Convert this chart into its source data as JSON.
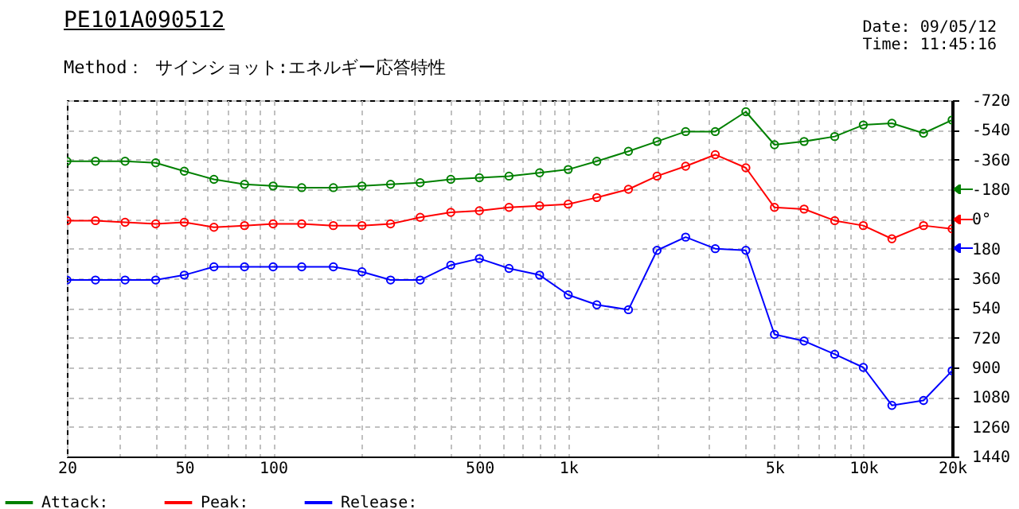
{
  "chart_data": {
    "type": "line",
    "title": "PE101A090512",
    "subtitle": "Method： サインショット:エネルギー応答特性",
    "annotations": [
      "Date: 09/05/12",
      "Time: 11:45:16"
    ],
    "x": [
      20,
      25,
      31.5,
      40,
      50,
      63,
      80,
      100,
      125,
      160,
      200,
      250,
      315,
      400,
      500,
      630,
      800,
      1000,
      1250,
      1600,
      2000,
      2500,
      3150,
      4000,
      5000,
      6300,
      8000,
      10000,
      12500,
      16000,
      20000
    ],
    "series": [
      {
        "name": "Attack:",
        "color": "#008000",
        "values": [
          -350,
          -350,
          -350,
          -340,
          -290,
          -240,
          -210,
          -200,
          -190,
          -190,
          -200,
          -210,
          -220,
          -240,
          -250,
          -260,
          -280,
          -300,
          -350,
          -410,
          -470,
          -530,
          -530,
          -650,
          -450,
          -470,
          -500,
          -570,
          -580,
          -520,
          -600
        ]
      },
      {
        "name": "Peak:",
        "color": "#ff0000",
        "values": [
          10,
          10,
          20,
          30,
          20,
          50,
          40,
          30,
          30,
          40,
          40,
          30,
          -10,
          -40,
          -50,
          -70,
          -80,
          -90,
          -130,
          -180,
          -260,
          -320,
          -390,
          -310,
          -70,
          -60,
          10,
          40,
          120,
          40,
          60
        ]
      },
      {
        "name": "Release:",
        "color": "#0000ff",
        "values": [
          370,
          370,
          370,
          370,
          340,
          290,
          290,
          290,
          290,
          290,
          320,
          370,
          370,
          280,
          240,
          300,
          340,
          460,
          520,
          550,
          190,
          110,
          180,
          190,
          700,
          740,
          820,
          900,
          1130,
          1100,
          920
        ]
      }
    ],
    "log": "x",
    "xlim": [
      20,
      20000
    ],
    "xticks": [
      20,
      {
        "value": 30,
        "label": null
      },
      {
        "value": 40,
        "label": null
      },
      50,
      {
        "value": 60,
        "label": null
      },
      {
        "value": 70,
        "label": null
      },
      {
        "value": 80,
        "label": null
      },
      {
        "value": 90,
        "label": null
      },
      100,
      {
        "value": 200,
        "label": null
      },
      {
        "value": 300,
        "label": null
      },
      {
        "value": 400,
        "label": null
      },
      500,
      {
        "value": 600,
        "label": null
      },
      {
        "value": 700,
        "label": null
      },
      {
        "value": 800,
        "label": null
      },
      {
        "value": 900,
        "label": null
      },
      {
        "value": 1000,
        "label": "1k"
      },
      {
        "value": 2000,
        "label": null
      },
      {
        "value": 3000,
        "label": null
      },
      {
        "value": 4000,
        "label": null
      },
      {
        "value": 5000,
        "label": "5k"
      },
      {
        "value": 6000,
        "label": null
      },
      {
        "value": 7000,
        "label": null
      },
      {
        "value": 8000,
        "label": null
      },
      {
        "value": 9000,
        "label": null
      },
      {
        "value": 10000,
        "label": "10k"
      },
      {
        "value": 20000,
        "label": "20k"
      }
    ],
    "ylim": [
      1440,
      -720
    ],
    "yticks": [
      -720,
      -540,
      -360,
      -180,
      {
        "value": 0,
        "label": "0°"
      },
      180,
      360,
      540,
      720,
      900,
      1080,
      1260,
      1440
    ],
    "grid": true,
    "marker": "circle",
    "line_style": "solid",
    "legend": "bottom"
  }
}
